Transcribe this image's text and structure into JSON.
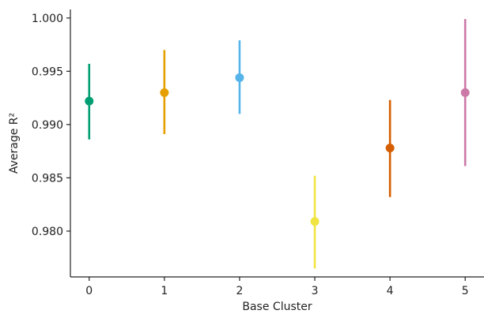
{
  "chart_data": {
    "type": "scatter",
    "title": "",
    "xlabel": "Base Cluster",
    "ylabel": "Average R²",
    "xlim": [
      -0.25,
      5.25
    ],
    "ylim": [
      0.9757,
      1.0008
    ],
    "x_ticks": [
      "0",
      "1",
      "2",
      "3",
      "4",
      "5"
    ],
    "y_ticks": [
      "0.980",
      "0.985",
      "0.990",
      "0.995",
      "1.000"
    ],
    "grid": false,
    "legend": "none",
    "points": [
      {
        "x": 0,
        "y": 0.9922,
        "low": 0.9886,
        "high": 0.9957,
        "color": "#009E73"
      },
      {
        "x": 1,
        "y": 0.993,
        "low": 0.9891,
        "high": 0.997,
        "color": "#E69F00"
      },
      {
        "x": 2,
        "y": 0.9944,
        "low": 0.991,
        "high": 0.9979,
        "color": "#56B4E9"
      },
      {
        "x": 3,
        "y": 0.9809,
        "low": 0.9765,
        "high": 0.9852,
        "color": "#F0E442"
      },
      {
        "x": 4,
        "y": 0.9878,
        "low": 0.9832,
        "high": 0.9923,
        "color": "#D55E00"
      },
      {
        "x": 5,
        "y": 0.993,
        "low": 0.9861,
        "high": 0.9999,
        "color": "#CC79A7"
      }
    ]
  }
}
